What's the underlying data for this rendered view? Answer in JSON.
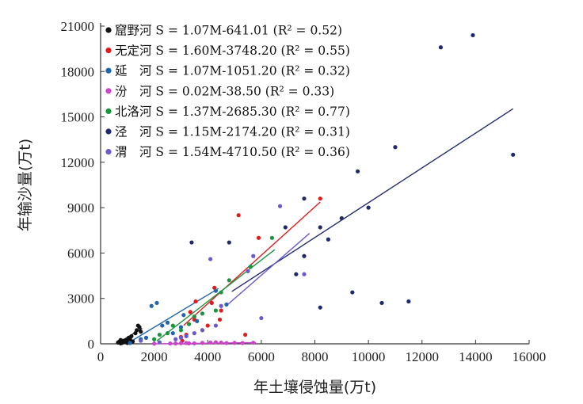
{
  "chart_data": {
    "type": "scatter",
    "xlabel": "年土壤侵蚀量(万t)",
    "ylabel": "年输沙量(万t)",
    "xlim": [
      0,
      16000
    ],
    "ylim": [
      0,
      21000
    ],
    "x_ticks": [
      "0",
      "2000",
      "4000",
      "6000",
      "8000",
      "10000",
      "12000",
      "14000",
      "16000"
    ],
    "y_ticks": [
      "0",
      "3000",
      "6000",
      "9000",
      "12000",
      "15000",
      "18000",
      "21000"
    ],
    "grid": false,
    "legend_position": "top-left",
    "series": [
      {
        "name": "窟野河",
        "label": "窟野河",
        "equation": "S = 1.07M-641.01 (R² = 0.52)",
        "color": "#111111",
        "points": [
          [
            650,
            80
          ],
          [
            700,
            150
          ],
          [
            750,
            30
          ],
          [
            800,
            60
          ],
          [
            850,
            200
          ],
          [
            900,
            120
          ],
          [
            950,
            250
          ],
          [
            1000,
            60
          ],
          [
            1050,
            400
          ],
          [
            1100,
            300
          ],
          [
            1150,
            500
          ],
          [
            1200,
            150
          ],
          [
            1300,
            700
          ],
          [
            1350,
            900
          ],
          [
            1400,
            1200
          ],
          [
            1450,
            1100
          ],
          [
            1500,
            800
          ],
          [
            1000,
            250
          ],
          [
            750,
            250
          ]
        ],
        "fit": [
          [
            700,
            108
          ],
          [
            1550,
            1018
          ]
        ]
      },
      {
        "name": "无定河",
        "label": "无定河",
        "equation": "S = 1.60M-3748.20 (R² = 0.55)",
        "color": "#e41a1c",
        "points": [
          [
            3050,
            200
          ],
          [
            3200,
            600
          ],
          [
            3350,
            2100
          ],
          [
            3550,
            2800
          ],
          [
            3800,
            900
          ],
          [
            4000,
            1200
          ],
          [
            4150,
            2700
          ],
          [
            4250,
            3700
          ],
          [
            4450,
            1600
          ],
          [
            4500,
            2200
          ],
          [
            5150,
            8500
          ],
          [
            5400,
            600
          ],
          [
            5900,
            7000
          ],
          [
            8200,
            9600
          ],
          [
            3000,
            450
          ],
          [
            3500,
            1600
          ]
        ],
        "fit": [
          [
            3100,
            1212
          ],
          [
            8200,
            9372
          ]
        ]
      },
      {
        "name": "延河",
        "label": "延　河",
        "equation": "S = 1.07M-1051.20 (R² = 0.32)",
        "color": "#2166ac",
        "points": [
          [
            1100,
            50
          ],
          [
            1500,
            300
          ],
          [
            1900,
            2500
          ],
          [
            2100,
            2700
          ],
          [
            2500,
            1400
          ],
          [
            2700,
            700
          ],
          [
            3100,
            1900
          ],
          [
            3600,
            1500
          ],
          [
            4300,
            3500
          ],
          [
            4700,
            2600
          ],
          [
            1700,
            400
          ],
          [
            2300,
            1200
          ],
          [
            3000,
            1100
          ]
        ],
        "fit": [
          [
            1000,
            19
          ],
          [
            4400,
            3657
          ]
        ]
      },
      {
        "name": "汾河",
        "label": "汾　河",
        "equation": "S = 0.02M-38.50 (R² = 0.33)",
        "color": "#cc44cc",
        "points": [
          [
            2000,
            10
          ],
          [
            2600,
            20
          ],
          [
            3000,
            40
          ],
          [
            3200,
            50
          ],
          [
            3500,
            30
          ],
          [
            3800,
            60
          ],
          [
            4100,
            80
          ],
          [
            4300,
            100
          ],
          [
            4500,
            80
          ],
          [
            4700,
            50
          ],
          [
            5000,
            60
          ],
          [
            5300,
            50
          ],
          [
            5700,
            70
          ],
          [
            2800,
            20
          ],
          [
            3300,
            30
          ]
        ],
        "fit": [
          [
            2000,
            2
          ],
          [
            5800,
            78
          ]
        ]
      },
      {
        "name": "北洛河",
        "label": "北洛河",
        "equation": "S = 1.37M-2685.30 (R² = 0.77)",
        "color": "#1a9641",
        "points": [
          [
            2000,
            300
          ],
          [
            2200,
            600
          ],
          [
            2500,
            700
          ],
          [
            2700,
            1200
          ],
          [
            3000,
            900
          ],
          [
            3300,
            1300
          ],
          [
            3500,
            1800
          ],
          [
            3800,
            2000
          ],
          [
            4300,
            2200
          ],
          [
            4500,
            3400
          ],
          [
            4800,
            4200
          ],
          [
            5600,
            5100
          ],
          [
            6400,
            7000
          ]
        ],
        "fit": [
          [
            2100,
            192
          ],
          [
            6500,
            6220
          ]
        ]
      },
      {
        "name": "泾河",
        "label": "泾　河",
        "equation": "S = 1.15M-2174.20 (R² = 0.31)",
        "color": "#1f2a6e",
        "points": [
          [
            3400,
            6700
          ],
          [
            4800,
            6700
          ],
          [
            6900,
            7700
          ],
          [
            7300,
            4600
          ],
          [
            7600,
            5800
          ],
          [
            7600,
            9600
          ],
          [
            8200,
            2400
          ],
          [
            8200,
            7700
          ],
          [
            8500,
            6900
          ],
          [
            9000,
            8300
          ],
          [
            9400,
            3400
          ],
          [
            9600,
            11400
          ],
          [
            10000,
            9000
          ],
          [
            10500,
            2700
          ],
          [
            11000,
            13000
          ],
          [
            11500,
            2800
          ],
          [
            12700,
            19600
          ],
          [
            13900,
            20400
          ],
          [
            15400,
            12500
          ]
        ],
        "fit": [
          [
            4900,
            3461
          ],
          [
            15400,
            15536
          ]
        ]
      },
      {
        "name": "渭河",
        "label": "渭　河",
        "equation": "S = 1.54M-4710.50 (R² = 0.36)",
        "color": "#6a5acd",
        "points": [
          [
            1500,
            200
          ],
          [
            2200,
            100
          ],
          [
            2800,
            300
          ],
          [
            3200,
            500
          ],
          [
            3500,
            700
          ],
          [
            3800,
            900
          ],
          [
            4100,
            5600
          ],
          [
            4300,
            1200
          ],
          [
            4500,
            2500
          ],
          [
            5500,
            4800
          ],
          [
            5700,
            5800
          ],
          [
            6000,
            1700
          ],
          [
            6700,
            9100
          ],
          [
            7600,
            4600
          ],
          [
            3000,
            400
          ]
        ],
        "fit": [
          [
            4700,
            2528
          ],
          [
            7800,
            7301
          ]
        ]
      }
    ]
  }
}
